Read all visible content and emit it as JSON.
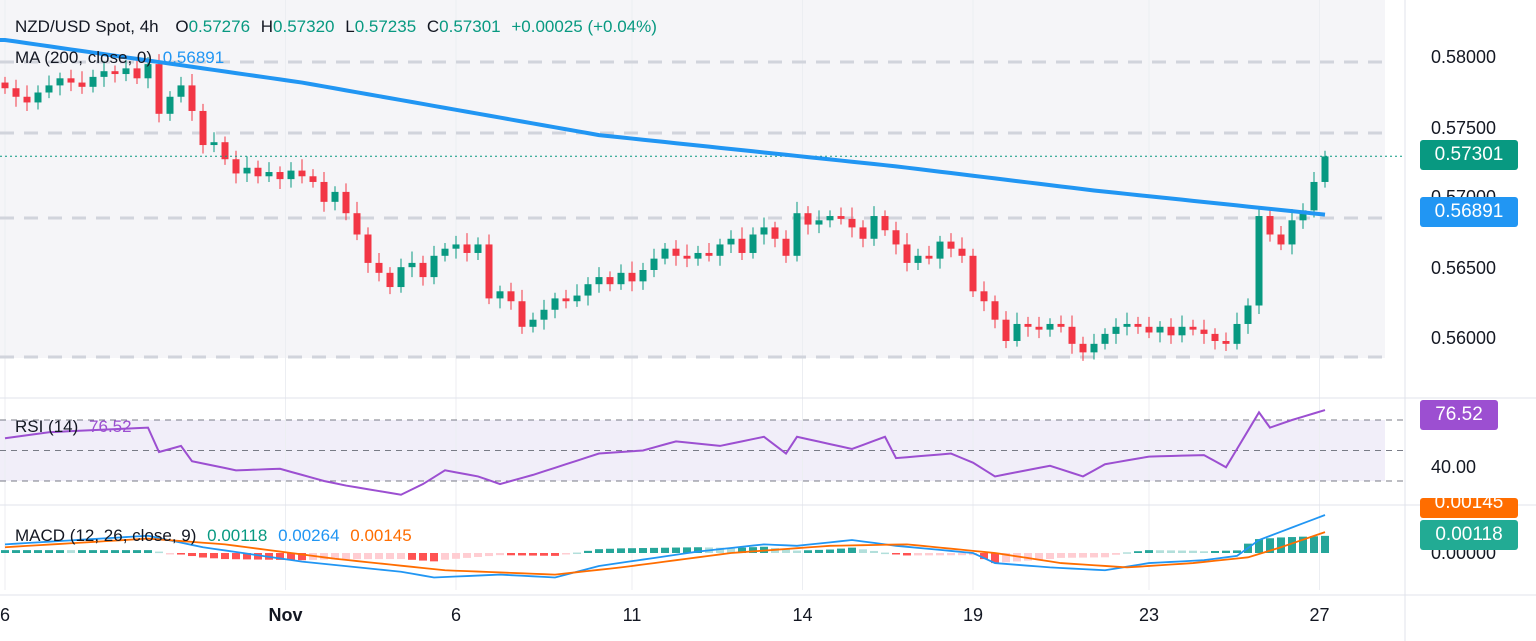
{
  "header": {
    "symbol": "NZD/USD Spot, 4h",
    "o_label": "O",
    "o": "0.57276",
    "h_label": "H",
    "h": "0.57320",
    "l_label": "L",
    "l": "0.57235",
    "c_label": "C",
    "c": "0.57301",
    "change": "+0.00025 (+0.04%)"
  },
  "ma_legend": {
    "label": "MA (200, close, 0)",
    "value": "0.56891"
  },
  "rsi_legend": {
    "label": "RSI (14)",
    "value": "76.52"
  },
  "macd_legend": {
    "label": "MACD (12, 26, close, 9)",
    "hist": "0.00118",
    "macd": "0.00264",
    "signal": "0.00145"
  },
  "price_axis": [
    "0.58000",
    "0.57500",
    "0.57000",
    "0.56500",
    "0.56000"
  ],
  "price_tags": {
    "last": "0.57301",
    "ma": "0.56891"
  },
  "rsi_axis": {
    "level": "40.00",
    "tag": "76.52"
  },
  "macd_axis": {
    "zero": "0.00000",
    "signal_tag": "0.00145",
    "hist_tag": "0.00118"
  },
  "colors": {
    "up": "#089981",
    "down": "#f23645",
    "ma": "#2962ff",
    "ma_line": "#2196f3",
    "rsi": "#9c4fd1",
    "macd": "#2196f3",
    "signal": "#ff6d00",
    "last": "#089981"
  },
  "chart_data": {
    "type": "candlestick",
    "title": "NZD/USD Spot, 4h",
    "x_ticks": [
      "6",
      "Nov",
      "6",
      "11",
      "14",
      "19",
      "23",
      "27"
    ],
    "ylim": [
      0.5575,
      0.5825
    ],
    "closes": [
      0.5778,
      0.5772,
      0.5768,
      0.5775,
      0.578,
      0.5785,
      0.5782,
      0.5779,
      0.5786,
      0.579,
      0.5788,
      0.5792,
      0.5785,
      0.5795,
      0.576,
      0.5772,
      0.578,
      0.5762,
      0.5738,
      0.574,
      0.5728,
      0.5718,
      0.5722,
      0.5716,
      0.5719,
      0.5714,
      0.572,
      0.5716,
      0.5712,
      0.5698,
      0.5705,
      0.569,
      0.5675,
      0.5655,
      0.5648,
      0.5638,
      0.5652,
      0.5655,
      0.5645,
      0.566,
      0.5665,
      0.5668,
      0.5662,
      0.5668,
      0.563,
      0.5635,
      0.5628,
      0.561,
      0.5615,
      0.5622,
      0.563,
      0.5628,
      0.5632,
      0.564,
      0.5645,
      0.564,
      0.5648,
      0.5642,
      0.565,
      0.5658,
      0.5665,
      0.566,
      0.5658,
      0.5662,
      0.566,
      0.5668,
      0.5672,
      0.5662,
      0.5675,
      0.568,
      0.5672,
      0.566,
      0.569,
      0.5682,
      0.5685,
      0.5688,
      0.5686,
      0.568,
      0.5672,
      0.5688,
      0.5678,
      0.5668,
      0.5655,
      0.566,
      0.5658,
      0.567,
      0.5665,
      0.566,
      0.5635,
      0.5628,
      0.5615,
      0.56,
      0.5612,
      0.561,
      0.5608,
      0.5612,
      0.561,
      0.5598,
      0.5592,
      0.5598,
      0.5605,
      0.561,
      0.5612,
      0.561,
      0.5606,
      0.561,
      0.5604,
      0.561,
      0.5608,
      0.5605,
      0.56,
      0.5598,
      0.5612,
      0.5625,
      0.5688,
      0.5675,
      0.5668,
      0.5685,
      0.5692,
      0.5712,
      0.573
    ],
    "ma200": [
      [
        0,
        0.5812
      ],
      [
        27,
        0.5782
      ],
      [
        54,
        0.5745
      ],
      [
        81,
        0.5723
      ],
      [
        99,
        0.5706
      ],
      [
        120,
        0.5689
      ]
    ],
    "rsi": [
      [
        0,
        58
      ],
      [
        4,
        62
      ],
      [
        13,
        65
      ],
      [
        14,
        49
      ],
      [
        16,
        53
      ],
      [
        17,
        43
      ],
      [
        21,
        37
      ],
      [
        25,
        38
      ],
      [
        29,
        30
      ],
      [
        31,
        27
      ],
      [
        36,
        21
      ],
      [
        38,
        28
      ],
      [
        40,
        37
      ],
      [
        43,
        33
      ],
      [
        45,
        28
      ],
      [
        48,
        34
      ],
      [
        54,
        48
      ],
      [
        58,
        50
      ],
      [
        61,
        56
      ],
      [
        65,
        53
      ],
      [
        69,
        59
      ],
      [
        71,
        48
      ],
      [
        72,
        59
      ],
      [
        77,
        51
      ],
      [
        80,
        59
      ],
      [
        81,
        45
      ],
      [
        86,
        48
      ],
      [
        88,
        42
      ],
      [
        90,
        33
      ],
      [
        95,
        40
      ],
      [
        98,
        33
      ],
      [
        100,
        41
      ],
      [
        104,
        46
      ],
      [
        109,
        47
      ],
      [
        111,
        39
      ],
      [
        114,
        75
      ],
      [
        115,
        65
      ],
      [
        117,
        70
      ],
      [
        120,
        76.52
      ]
    ],
    "rsi_levels": [
      70,
      50,
      30
    ],
    "macd": [
      [
        0,
        0.0006
      ],
      [
        13,
        0.0012
      ],
      [
        18,
        0.0004
      ],
      [
        27,
        -0.0006
      ],
      [
        36,
        -0.0013
      ],
      [
        39,
        -0.0017
      ],
      [
        45,
        -0.0015
      ],
      [
        50,
        -0.0017
      ],
      [
        54,
        -0.0009
      ],
      [
        63,
        0.0001
      ],
      [
        69,
        0.0006
      ],
      [
        72,
        0.0005
      ],
      [
        77,
        0.0009
      ],
      [
        81,
        0.0005
      ],
      [
        88,
        0.0
      ],
      [
        90,
        -0.0007
      ],
      [
        95,
        -0.001
      ],
      [
        100,
        -0.0012
      ],
      [
        104,
        -0.0007
      ],
      [
        109,
        -0.0005
      ],
      [
        112,
        -0.0002
      ],
      [
        114,
        0.0009
      ],
      [
        120,
        0.00264
      ]
    ],
    "signal": [
      [
        0,
        0.0004
      ],
      [
        13,
        0.001
      ],
      [
        20,
        0.0006
      ],
      [
        30,
        -0.0004
      ],
      [
        40,
        -0.0012
      ],
      [
        50,
        -0.0015
      ],
      [
        56,
        -0.001
      ],
      [
        66,
        0.0
      ],
      [
        75,
        0.0005
      ],
      [
        82,
        0.0006
      ],
      [
        90,
        0.0
      ],
      [
        96,
        -0.0007
      ],
      [
        102,
        -0.001
      ],
      [
        108,
        -0.0007
      ],
      [
        113,
        -0.0003
      ],
      [
        116,
        0.0004
      ],
      [
        120,
        0.00145
      ]
    ]
  }
}
